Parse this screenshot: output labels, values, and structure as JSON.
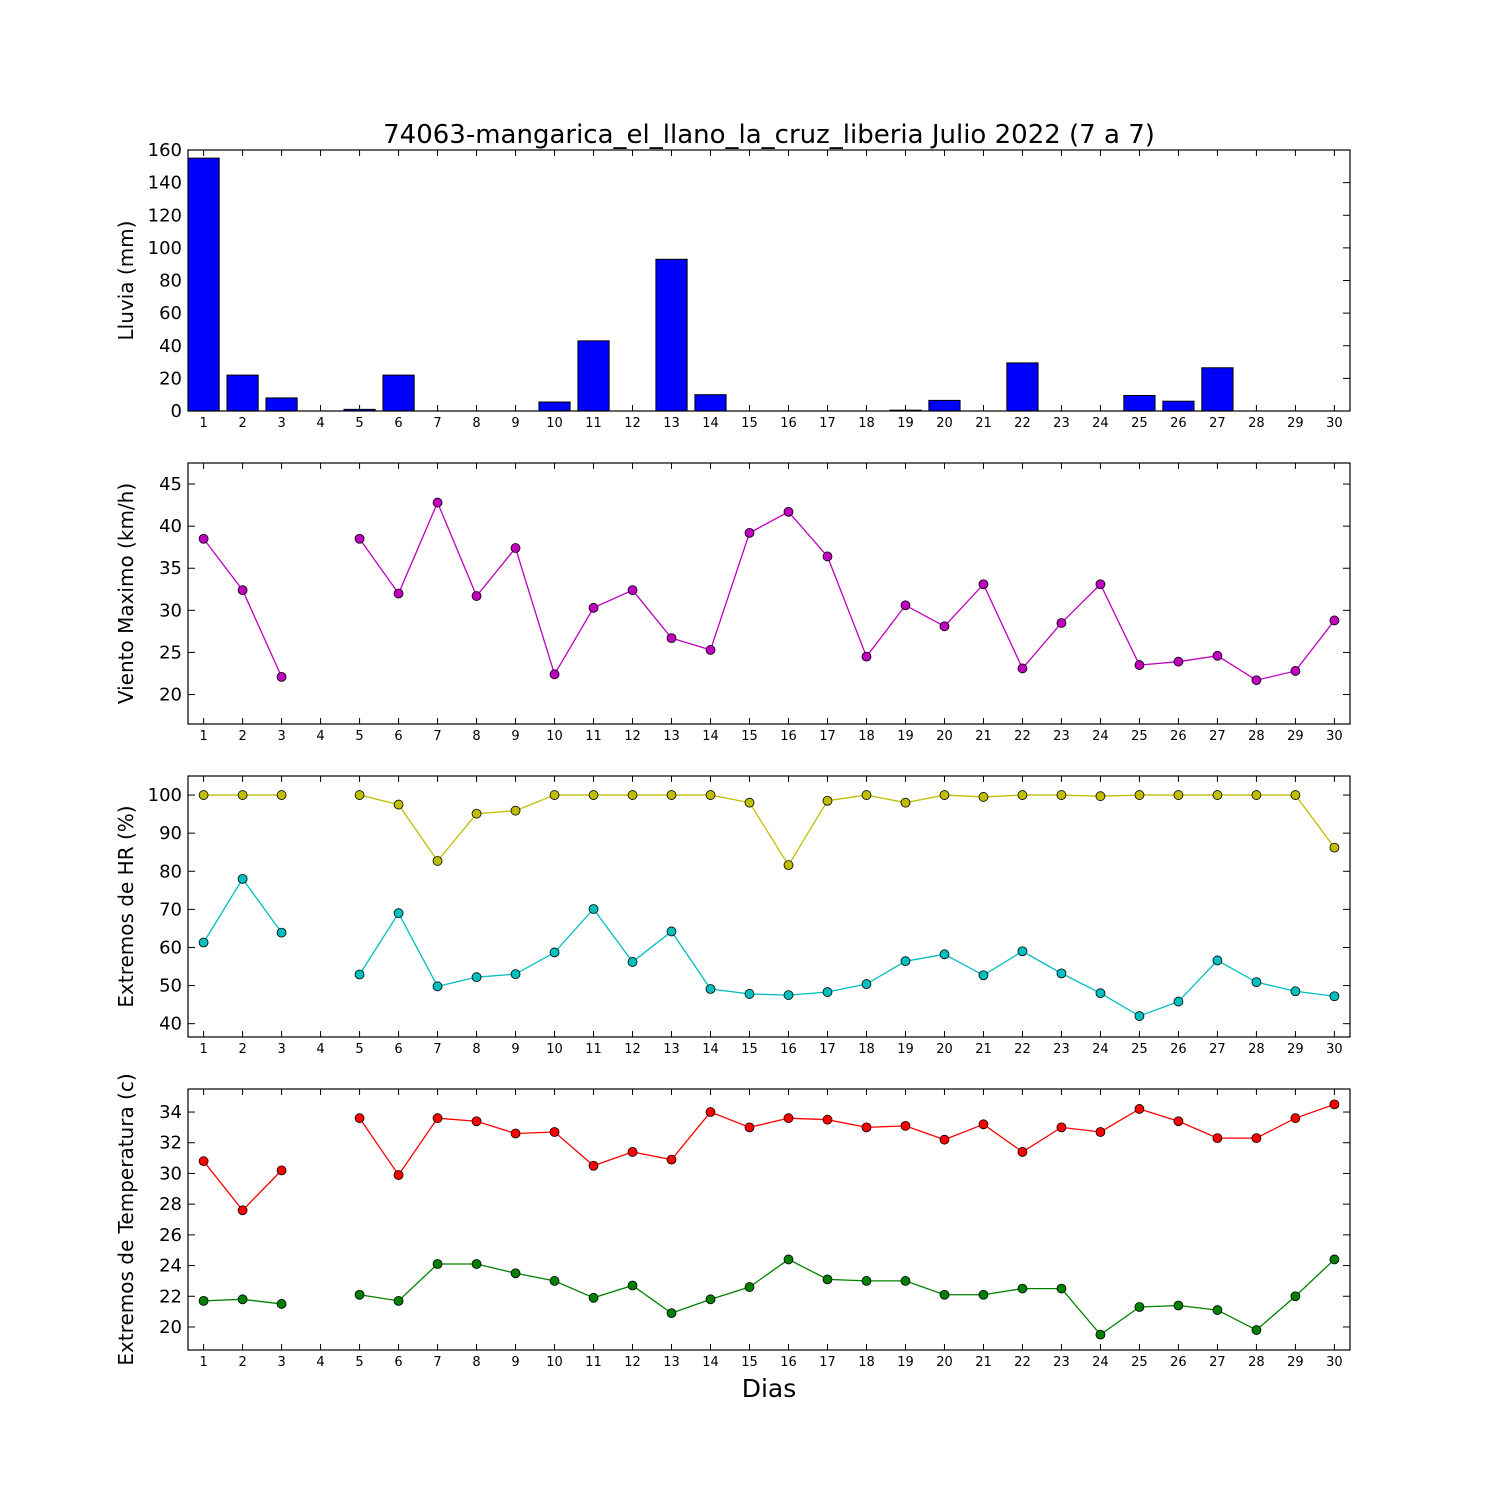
{
  "chart_data": {
    "title": "74063-mangarica_el_llano_la_cruz_liberia Julio 2022  (7 a 7)",
    "xlabel": "Dias",
    "x": [
      1,
      2,
      3,
      4,
      5,
      6,
      7,
      8,
      9,
      10,
      11,
      12,
      13,
      14,
      15,
      16,
      17,
      18,
      19,
      20,
      21,
      22,
      23,
      24,
      25,
      26,
      27,
      28,
      29,
      30
    ],
    "xlim": [
      0.6,
      30.4
    ],
    "panels": [
      {
        "id": "lluvia",
        "type": "bar",
        "ylabel": "Lluvia (mm)",
        "ylim": [
          0,
          160
        ],
        "yticks": [
          0,
          20,
          40,
          60,
          80,
          100,
          120,
          140,
          160
        ],
        "series": [
          {
            "color": "#0000ff",
            "values": [
              155,
              22,
              8,
              0,
              1,
              22,
              0,
              0,
              0,
              5.5,
              43,
              0,
              93,
              10,
              0,
              0,
              0,
              0,
              0.5,
              6.5,
              0,
              29.5,
              0,
              0,
              9.5,
              6,
              26.5,
              0,
              0,
              0
            ]
          }
        ]
      },
      {
        "id": "viento",
        "type": "line",
        "ylabel": "Viento Maximo (km/h)",
        "ylim": [
          16.5,
          47.5
        ],
        "yticks": [
          20,
          25,
          30,
          35,
          40,
          45
        ],
        "series": [
          {
            "color": "#bf00bf",
            "values": [
              38.5,
              32.4,
              22.1,
              null,
              38.5,
              32.0,
              42.8,
              31.7,
              37.4,
              22.4,
              30.3,
              32.4,
              26.7,
              25.3,
              39.2,
              41.7,
              36.4,
              24.5,
              30.6,
              28.1,
              33.1,
              23.1,
              28.5,
              33.1,
              23.5,
              23.9,
              24.6,
              21.7,
              22.8,
              28.8
            ]
          }
        ]
      },
      {
        "id": "hr",
        "type": "line",
        "ylabel": "Extremos de HR (%)",
        "ylim": [
          36.5,
          105
        ],
        "yticks": [
          40,
          50,
          60,
          70,
          80,
          90,
          100
        ],
        "series": [
          {
            "color": "#bfbf00",
            "values": [
              100,
              100,
              100,
              null,
              100,
              97.5,
              82.7,
              95.1,
              95.9,
              100,
              100,
              100,
              100,
              100,
              98.0,
              81.6,
              98.5,
              100,
              98.0,
              100,
              99.5,
              100,
              100,
              99.7,
              100,
              100,
              100,
              100,
              100,
              86.2
            ]
          },
          {
            "color": "#00bfbf",
            "values": [
              61.3,
              78.0,
              63.9,
              null,
              52.9,
              69.0,
              49.8,
              52.2,
              53.0,
              58.7,
              70.1,
              56.2,
              64.2,
              49.1,
              47.8,
              47.5,
              48.3,
              50.4,
              56.4,
              58.2,
              52.7,
              59.0,
              53.2,
              48.0,
              42.0,
              45.8,
              56.6,
              50.9,
              48.5,
              47.2
            ]
          }
        ]
      },
      {
        "id": "temperatura",
        "type": "line",
        "ylabel": "Extremos de Temperatura (c)",
        "ylim": [
          18.5,
          35.5
        ],
        "yticks": [
          20,
          22,
          24,
          26,
          28,
          30,
          32,
          34
        ],
        "series": [
          {
            "color": "#ff0000",
            "values": [
              30.8,
              27.6,
              30.2,
              null,
              33.6,
              29.9,
              33.6,
              33.4,
              32.6,
              32.7,
              30.5,
              31.4,
              30.9,
              34.0,
              33.0,
              33.6,
              33.5,
              33.0,
              33.1,
              32.2,
              33.2,
              31.4,
              33.0,
              32.7,
              34.2,
              33.4,
              32.3,
              32.3,
              33.6,
              34.5
            ]
          },
          {
            "color": "#008000",
            "values": [
              21.7,
              21.8,
              21.5,
              null,
              22.1,
              21.7,
              24.1,
              24.1,
              23.5,
              23.0,
              21.9,
              22.7,
              20.9,
              21.8,
              22.6,
              24.4,
              23.1,
              23.0,
              23.0,
              22.1,
              22.1,
              22.5,
              22.5,
              19.5,
              21.3,
              21.4,
              21.1,
              19.8,
              22.0,
              24.4
            ]
          }
        ]
      }
    ]
  }
}
